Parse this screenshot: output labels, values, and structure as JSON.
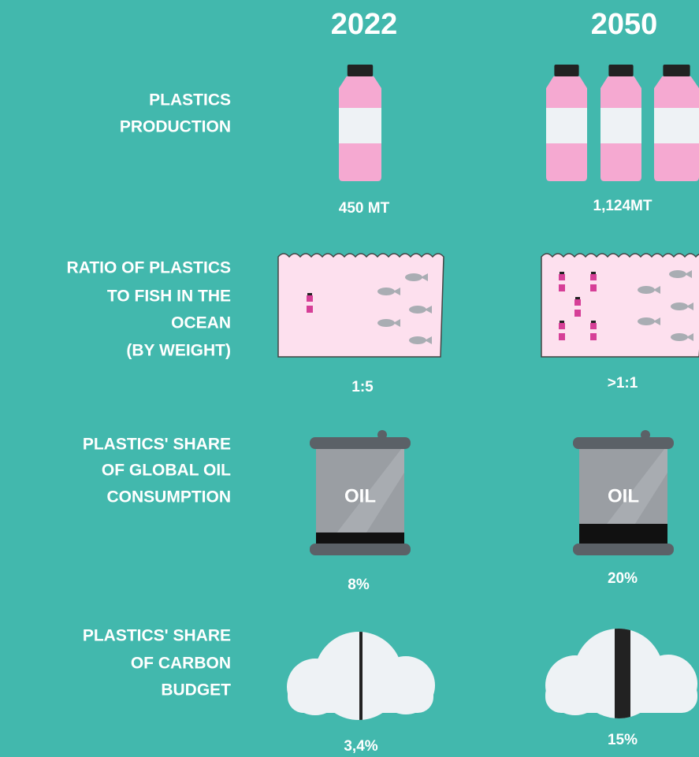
{
  "header": {
    "columns": [
      "2022",
      "2050"
    ]
  },
  "rows": [
    {
      "label": [
        "PLASTICS",
        "PRODUCTION"
      ],
      "values": [
        "450 MT",
        "1,124MT"
      ]
    },
    {
      "label": [
        "RATIO OF PLASTICS",
        "TO FISH IN THE",
        "OCEAN",
        "(BY WEIGHT)"
      ],
      "values": [
        "1:5",
        ">1:1"
      ]
    },
    {
      "label": [
        "PLASTICS' SHARE",
        "OF GLOBAL OIL",
        "CONSUMPTION"
      ],
      "values": [
        "8%",
        "20%"
      ],
      "icon_text": "OIL"
    },
    {
      "label": [
        "PLASTICS' SHARE",
        "OF CARBON",
        "BUDGET"
      ],
      "values": [
        "3,4%",
        "15%"
      ]
    }
  ]
}
